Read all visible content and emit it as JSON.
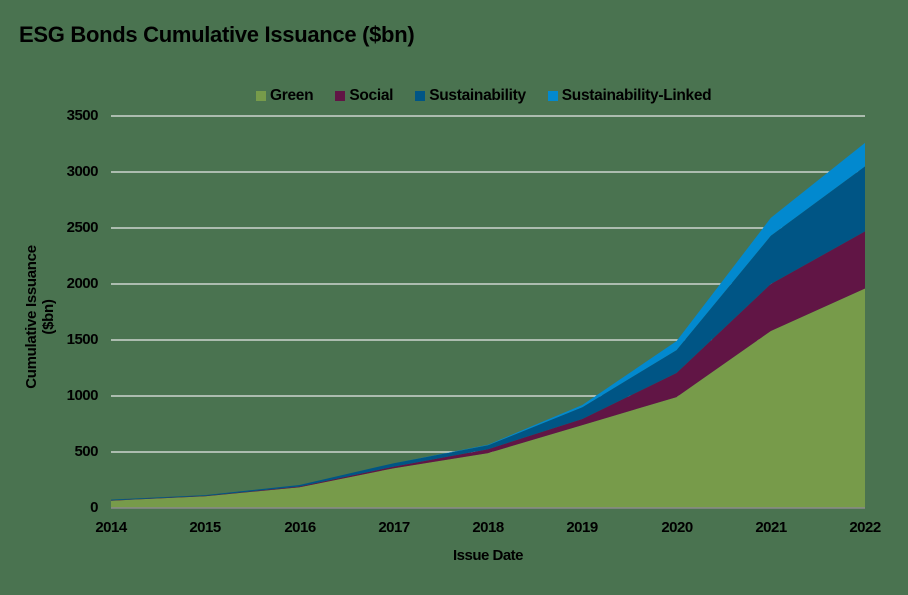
{
  "chart_data": {
    "type": "area",
    "stacked": true,
    "title": "ESG Bonds Cumulative Issuance ($bn)",
    "xlabel": "Issue Date",
    "ylabel": "Cumulative Issuance ($bn)",
    "categories": [
      "2014",
      "2015",
      "2016",
      "2017",
      "2018",
      "2019",
      "2020",
      "2021",
      "2022"
    ],
    "y_ticks": [
      "3500",
      "3000",
      "2500",
      "2000",
      "1500",
      "1000",
      "500",
      "0"
    ],
    "ylim": [
      0,
      3500
    ],
    "grid": true,
    "legend_position": "top",
    "series": [
      {
        "name": "Green",
        "color": "#779b4a",
        "values": [
          65,
          105,
          185,
          355,
          490,
          740,
          990,
          1580,
          1960
        ]
      },
      {
        "name": "Social",
        "color": "#611545",
        "values": [
          3,
          3,
          7,
          15,
          35,
          55,
          215,
          420,
          510
        ]
      },
      {
        "name": "Sustainability",
        "color": "#005585",
        "values": [
          7,
          7,
          13,
          30,
          35,
          105,
          205,
          430,
          580
        ]
      },
      {
        "name": "Sustainability-Linked",
        "color": "#0289cf",
        "values": [
          0,
          0,
          0,
          0,
          5,
          20,
          80,
          160,
          210
        ]
      }
    ]
  },
  "title": "ESG Bonds Cumulative Issuance ($bn)",
  "legend": [
    {
      "label": "Green",
      "color": "#779b4a"
    },
    {
      "label": "Social",
      "color": "#611545"
    },
    {
      "label": "Sustainability",
      "color": "#005585"
    },
    {
      "label": "Sustainability-Linked",
      "color": "#0289cf"
    }
  ],
  "axes": {
    "xlabel": "Issue Date",
    "ylabel": "Cumulative Issuance ($bn)",
    "x_ticks": [
      "2014",
      "2015",
      "2016",
      "2017",
      "2018",
      "2019",
      "2020",
      "2021",
      "2022"
    ],
    "y_ticks": [
      "3500",
      "3000",
      "2500",
      "2000",
      "1500",
      "1000",
      "500",
      "0"
    ]
  }
}
